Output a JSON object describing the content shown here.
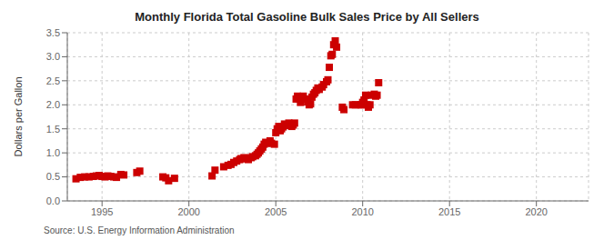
{
  "chart_data": {
    "type": "scatter",
    "title": "Monthly Florida Total Gasoline Bulk Sales Price by All Sellers",
    "y_label": "Dollars per Gallon",
    "annotations": [
      "Source: U.S. Energy Information Administration"
    ],
    "color": "#CC0000",
    "marker": "square",
    "grid": true,
    "xlim": [
      1993.0,
      2023.0
    ],
    "ylim": [
      0.0,
      3.5
    ],
    "xticks": [
      1995,
      2000,
      2005,
      2010,
      2015,
      2020
    ],
    "yticks": [
      {
        "value": 0.0,
        "label": "0.0"
      },
      0.5,
      {
        "value": 1.0,
        "label": "1.0"
      },
      1.5,
      {
        "value": 2.0,
        "label": "2.0"
      },
      2.5,
      {
        "value": 3.0,
        "label": "3.0"
      },
      3.5
    ],
    "x": [
      1993.5,
      1993.75,
      1994.0,
      1994.25,
      1994.5,
      1994.67,
      1994.83,
      1995.0,
      1995.17,
      1995.33,
      1995.5,
      1995.67,
      1995.83,
      1996.08,
      1996.25,
      1997.0,
      1997.17,
      1998.5,
      1998.67,
      1998.83,
      1999.17,
      2001.33,
      2001.5,
      2002.0,
      2002.25,
      2002.42,
      2002.58,
      2002.75,
      2002.92,
      2003.0,
      2003.17,
      2003.25,
      2003.42,
      2003.58,
      2003.67,
      2003.83,
      2003.92,
      2004.0,
      2004.08,
      2004.17,
      2004.25,
      2004.33,
      2004.42,
      2004.5,
      2004.67,
      2004.75,
      2004.92,
      2005.0,
      2005.08,
      2005.17,
      2005.25,
      2005.33,
      2005.42,
      2005.5,
      2005.67,
      2005.75,
      2005.92,
      2006.0,
      2006.08,
      2006.17,
      2006.25,
      2006.33,
      2006.42,
      2006.58,
      2006.67,
      2006.83,
      2006.92,
      2007.0,
      2007.08,
      2007.17,
      2007.25,
      2007.33,
      2007.42,
      2007.5,
      2007.67,
      2007.75,
      2007.92,
      2008.0,
      2008.08,
      2008.17,
      2008.25,
      2008.33,
      2008.42,
      2008.5,
      2008.83,
      2008.92,
      2009.42,
      2009.58,
      2009.83,
      2009.92,
      2010.0,
      2010.08,
      2010.17,
      2010.25,
      2010.33,
      2010.42,
      2010.5,
      2010.67,
      2010.75,
      2010.83,
      2010.92
    ],
    "values": [
      0.46,
      0.49,
      0.5,
      0.5,
      0.51,
      0.52,
      0.53,
      0.51,
      0.5,
      0.52,
      0.51,
      0.5,
      0.49,
      0.55,
      0.54,
      0.59,
      0.62,
      0.5,
      0.48,
      0.42,
      0.47,
      0.52,
      0.64,
      0.71,
      0.74,
      0.76,
      0.8,
      0.83,
      0.86,
      0.88,
      0.9,
      0.88,
      0.86,
      0.9,
      0.92,
      0.94,
      0.97,
      1.0,
      1.04,
      1.08,
      1.12,
      1.18,
      1.22,
      1.2,
      1.25,
      1.2,
      1.18,
      1.42,
      1.5,
      1.55,
      1.46,
      1.5,
      1.54,
      1.6,
      1.57,
      1.62,
      1.55,
      1.58,
      1.62,
      2.12,
      2.18,
      2.12,
      2.05,
      2.18,
      2.12,
      2.06,
      2.0,
      2.02,
      2.16,
      2.22,
      2.25,
      2.3,
      2.35,
      2.32,
      2.37,
      2.42,
      2.48,
      2.52,
      2.78,
      3.02,
      3.05,
      3.25,
      3.33,
      3.2,
      1.95,
      1.9,
      2.0,
      2.0,
      2.0,
      2.0,
      2.05,
      2.1,
      2.2,
      2.0,
      1.95,
      2.0,
      2.2,
      2.22,
      2.18,
      2.2,
      2.46
    ]
  }
}
